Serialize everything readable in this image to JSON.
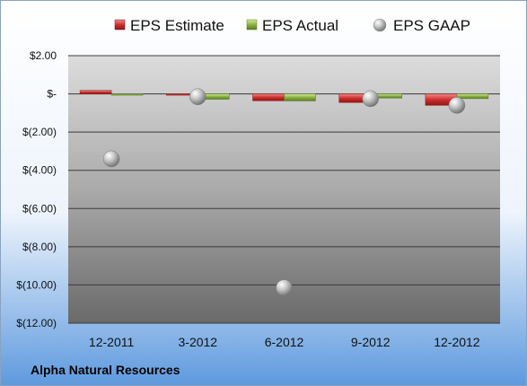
{
  "company": "Alpha Natural Resources",
  "colors": {
    "estimate": "#d02f2f",
    "actual": "#8cb244",
    "gaap": "#a8a8a8"
  },
  "chart_data": {
    "type": "bar",
    "categories": [
      "12-2011",
      "3-2012",
      "6-2012",
      "9-2012",
      "12-2012"
    ],
    "series": [
      {
        "name": "EPS Estimate",
        "kind": "bar",
        "values": [
          0.18,
          -0.06,
          -0.36,
          -0.45,
          -0.6
        ]
      },
      {
        "name": "EPS Actual",
        "kind": "bar",
        "values": [
          -0.05,
          -0.28,
          -0.37,
          -0.22,
          -0.25
        ]
      },
      {
        "name": "EPS GAAP",
        "kind": "scatter",
        "values": [
          -3.4,
          -0.15,
          -10.15,
          -0.25,
          -0.6
        ]
      }
    ],
    "yticks": [
      {
        "value": 2,
        "label": "$2.00"
      },
      {
        "value": 0,
        "label": "$-"
      },
      {
        "value": -2,
        "label": "$(2.00)"
      },
      {
        "value": -4,
        "label": "$(4.00)"
      },
      {
        "value": -6,
        "label": "$(6.00)"
      },
      {
        "value": -8,
        "label": "$(8.00)"
      },
      {
        "value": -10,
        "label": "$(10.00)"
      },
      {
        "value": -12,
        "label": "$(12.00)"
      }
    ],
    "ylim": [
      -12,
      2
    ],
    "grid": true,
    "legend": "top"
  }
}
